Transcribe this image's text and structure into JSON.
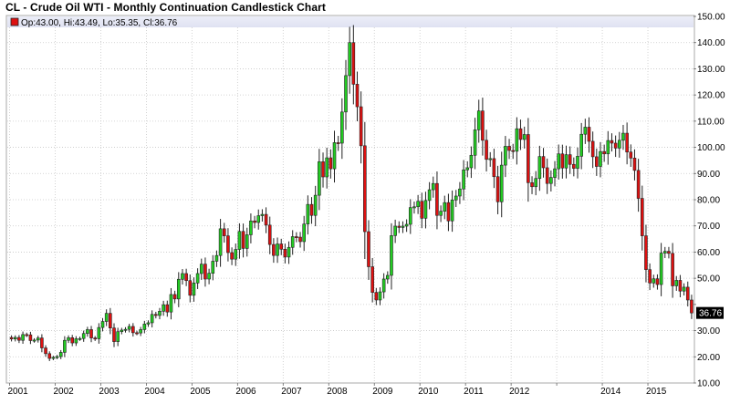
{
  "chart_data": {
    "type": "candlestick",
    "title": "CL - Crude Oil WTI - Monthly Continuation Candlestick Chart",
    "legend_text": "Op:43.00, Hi:43.49, Lo:35.35, Cl:36.76",
    "last_price_label": "36.76",
    "ylim": [
      10,
      150
    ],
    "y_ticks": [
      10,
      20,
      30,
      40,
      50,
      60,
      70,
      80,
      90,
      100,
      110,
      120,
      130,
      140,
      150
    ],
    "y_tick_labels": [
      "10.00",
      "20.00",
      "30.00",
      "",
      "50.00",
      "60.00",
      "70.00",
      "80.00",
      "90.00",
      "100.00",
      "110.00",
      "120.00",
      "130.00",
      "140.00",
      "150.00"
    ],
    "x_year_labels": [
      "2001",
      "2002",
      "2003",
      "2004",
      "2005",
      "2006",
      "2007",
      "2008",
      "2009",
      "2010",
      "2011",
      "2012",
      "2014",
      "2015"
    ],
    "x_year_positions": [
      2001,
      2002,
      2003,
      2004,
      2005,
      2006,
      2007,
      2008,
      2009,
      2010,
      2011,
      2012,
      2014,
      2015
    ],
    "x_grid_years": [
      2001,
      2002,
      2003,
      2004,
      2005,
      2006,
      2007,
      2008,
      2009,
      2010,
      2011,
      2012,
      2013,
      2014,
      2015
    ],
    "x_start": 2000.95,
    "x_end": 2016.0,
    "grid": true,
    "up_color": "#22cc22",
    "down_color": "#dd1111",
    "closes": [
      26.8,
      27.4,
      26.3,
      28.5,
      28.4,
      26.2,
      26.4,
      27.2,
      23.4,
      21.2,
      19.4,
      19.8,
      20.1,
      21.7,
      26.3,
      27.3,
      25.3,
      26.9,
      27.0,
      28.9,
      30.4,
      27.2,
      26.9,
      31.2,
      33.5,
      36.6,
      31.0,
      25.8,
      29.6,
      30.2,
      30.5,
      31.6,
      29.2,
      29.1,
      30.4,
      32.5,
      33.0,
      36.2,
      35.8,
      37.4,
      39.9,
      37.1,
      43.8,
      42.1,
      49.6,
      51.8,
      49.1,
      43.5,
      48.2,
      51.8,
      55.4,
      49.7,
      51.9,
      56.5,
      58.7,
      68.9,
      66.2,
      59.8,
      57.3,
      61.0,
      67.9,
      61.4,
      66.6,
      71.9,
      71.3,
      73.9,
      74.4,
      70.3,
      62.9,
      58.7,
      63.1,
      61.1,
      58.1,
      61.8,
      65.9,
      65.7,
      64.0,
      70.7,
      78.2,
      74.0,
      81.7,
      94.5,
      88.7,
      96.0,
      91.8,
      101.8,
      101.6,
      113.5,
      127.4,
      140.0,
      124.1,
      115.5,
      100.6,
      67.8,
      54.4,
      44.6,
      41.7,
      44.8,
      49.7,
      51.1,
      66.3,
      69.9,
      69.4,
      69.9,
      70.6,
      77.0,
      77.3,
      79.4,
      72.9,
      79.7,
      83.8,
      86.2,
      74.0,
      75.6,
      78.9,
      71.9,
      79.9,
      81.4,
      84.1,
      91.4,
      92.2,
      96.97,
      106.7,
      113.9,
      102.7,
      95.4,
      95.7,
      88.8,
      79.2,
      93.2,
      100.4,
      98.8,
      98.5,
      107.1,
      103.0,
      104.9,
      86.5,
      84.96,
      88.1,
      96.5,
      92.2,
      86.2,
      88.5,
      91.8,
      97.5,
      92.1,
      97.2,
      93.5,
      91.97,
      96.6,
      105.0,
      107.7,
      102.3,
      96.4,
      92.7,
      98.4,
      97.5,
      102.6,
      101.6,
      99.7,
      102.7,
      105.4,
      98.2,
      95.9,
      91.2,
      80.5,
      66.2,
      53.3,
      48.2,
      49.8,
      47.6,
      59.6,
      60.3,
      59.5,
      47.1,
      49.2,
      45.1,
      46.6,
      41.7,
      36.76
    ]
  }
}
